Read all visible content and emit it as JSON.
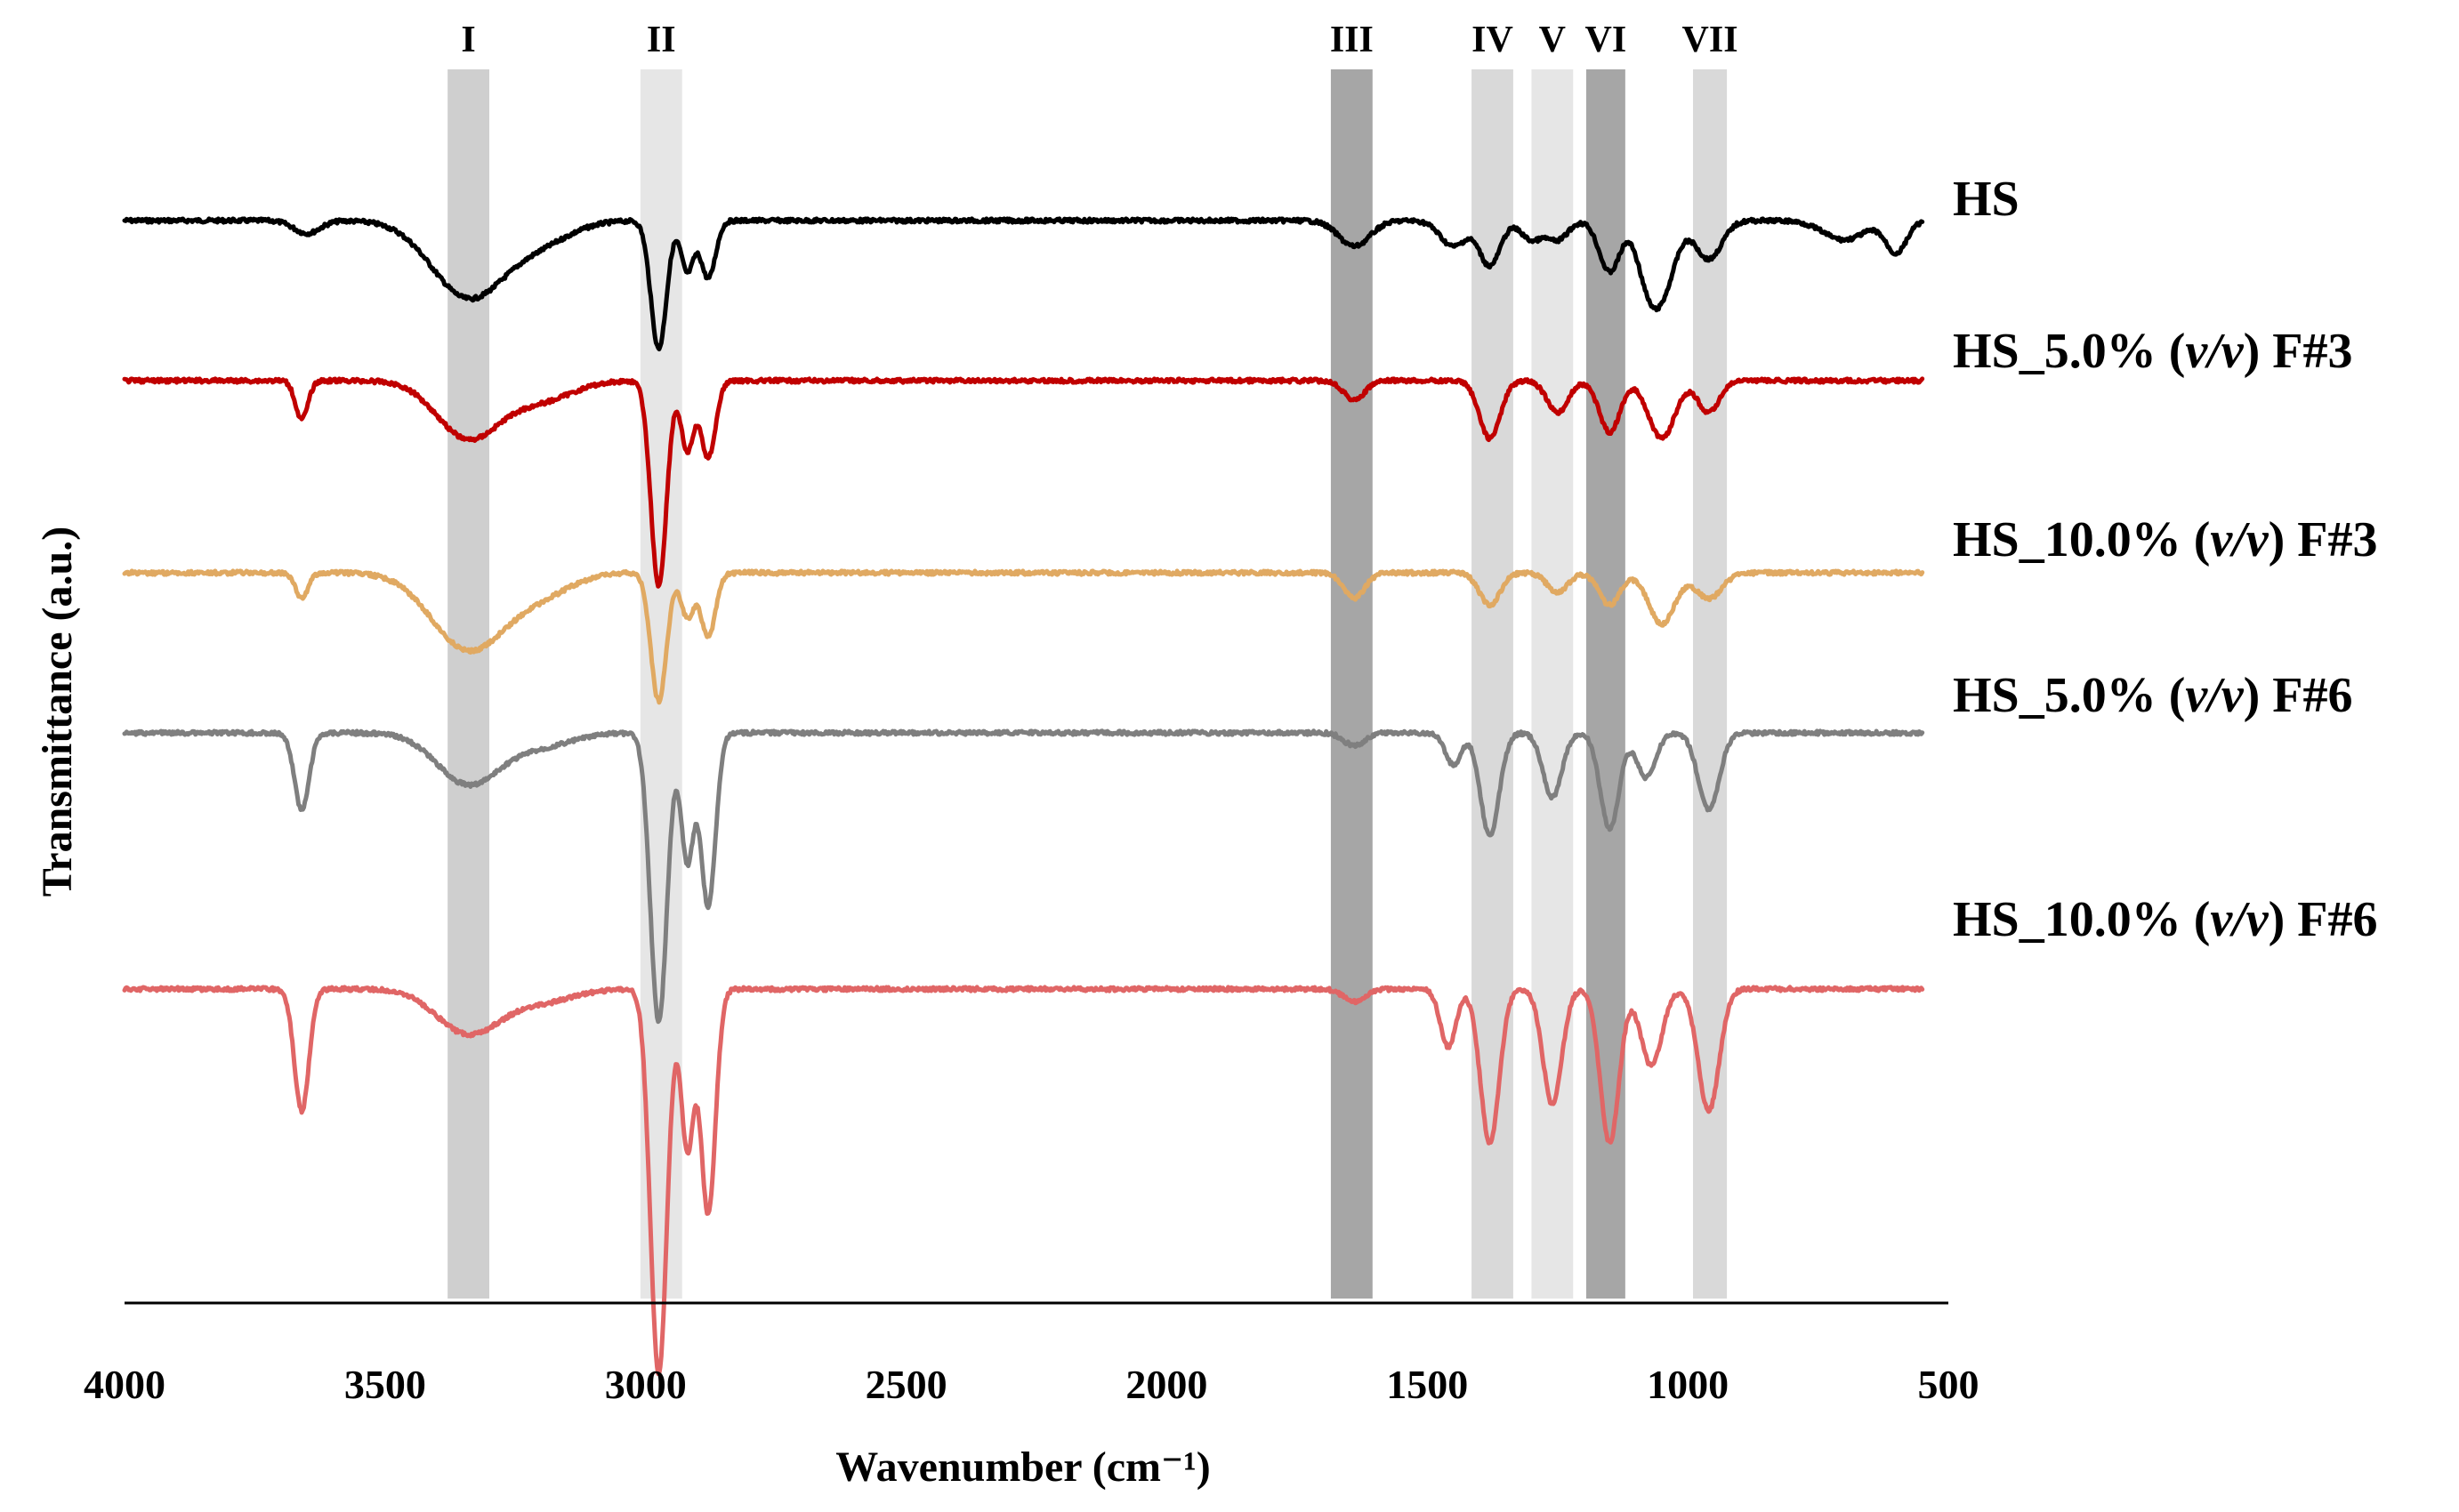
{
  "chart_data": {
    "type": "line",
    "title": "",
    "xlabel": "Wavenumber (cm⁻¹)",
    "ylabel": "Transmittance (a.u.)",
    "xlim": [
      4000,
      500
    ],
    "x_reversed": true,
    "grid": false,
    "x_ticks": [
      "4000",
      "3500",
      "3000",
      "2500",
      "2000",
      "1500",
      "1000",
      "500"
    ],
    "x_tick_values": [
      4000,
      3500,
      3000,
      2500,
      2000,
      1500,
      1000,
      500
    ],
    "x_end": 550,
    "bands": [
      {
        "label": "I",
        "from": 3380,
        "to": 3300,
        "shade": "#cfcfcf"
      },
      {
        "label": "II",
        "from": 3010,
        "to": 2930,
        "shade": "#e6e6e6"
      },
      {
        "label": "III",
        "from": 1685,
        "to": 1605,
        "shade": "#a6a6a6"
      },
      {
        "label": "IV",
        "from": 1415,
        "to": 1335,
        "shade": "#d9d9d9"
      },
      {
        "label": "V",
        "from": 1300,
        "to": 1220,
        "shade": "#e6e6e6"
      },
      {
        "label": "VI",
        "from": 1195,
        "to": 1120,
        "shade": "#a6a6a6"
      },
      {
        "label": "VII",
        "from": 990,
        "to": 925,
        "shade": "#d9d9d9"
      }
    ],
    "series": [
      {
        "name": "HS",
        "legend": {
          "pre": "HS",
          "ital": "",
          "post": ""
        },
        "color": "#000000",
        "baseline": 0,
        "features": [
          [
            3650,
            0.2,
            25
          ],
          [
            3340,
            1.2,
            70
          ],
          [
            3200,
            0.3,
            60
          ],
          [
            2975,
            2.0,
            15
          ],
          [
            2920,
            0.8,
            12
          ],
          [
            2880,
            0.9,
            14
          ],
          [
            1640,
            0.4,
            30
          ],
          [
            1450,
            0.4,
            25
          ],
          [
            1380,
            0.7,
            20
          ],
          [
            1300,
            0.3,
            20
          ],
          [
            1250,
            0.3,
            20
          ],
          [
            1150,
            0.8,
            20
          ],
          [
            1080,
            0.6,
            20
          ],
          [
            1050,
            1.1,
            25
          ],
          [
            960,
            0.6,
            25
          ],
          [
            700,
            0.3,
            40
          ],
          [
            600,
            0.5,
            20
          ]
        ]
      },
      {
        "name": "HS_5.0% (v/v) F#3",
        "legend": {
          "pre": "HS_5.0% (",
          "ital": "v/v",
          "post": ") F#3"
        },
        "color": "#c00000",
        "baseline": 2.5,
        "features": [
          [
            3660,
            0.6,
            12
          ],
          [
            3340,
            0.9,
            60
          ],
          [
            3200,
            0.3,
            60
          ],
          [
            2975,
            3.2,
            15
          ],
          [
            2920,
            1.1,
            12
          ],
          [
            2880,
            1.2,
            14
          ],
          [
            1640,
            0.3,
            20
          ],
          [
            1380,
            0.9,
            20
          ],
          [
            1250,
            0.5,
            20
          ],
          [
            1150,
            0.8,
            20
          ],
          [
            1050,
            0.9,
            25
          ],
          [
            960,
            0.5,
            20
          ]
        ]
      },
      {
        "name": "HS_10.0% (v/v) F#3",
        "legend": {
          "pre": "HS_10.0% (",
          "ital": "v/v",
          "post": ") F#3"
        },
        "color": "#e0a962",
        "baseline": 5.5,
        "features": [
          [
            3660,
            0.4,
            12
          ],
          [
            3340,
            1.2,
            70
          ],
          [
            3200,
            0.3,
            60
          ],
          [
            2975,
            2.0,
            15
          ],
          [
            2920,
            0.7,
            12
          ],
          [
            2880,
            1.0,
            14
          ],
          [
            1640,
            0.4,
            20
          ],
          [
            1380,
            0.5,
            20
          ],
          [
            1250,
            0.3,
            20
          ],
          [
            1150,
            0.5,
            20
          ],
          [
            1050,
            0.8,
            25
          ],
          [
            960,
            0.4,
            25
          ]
        ]
      },
      {
        "name": "HS_5.0% (v/v) F#6",
        "legend": {
          "pre": "HS_5.0% (",
          "ital": "v/v",
          "post": ") F#6"
        },
        "color": "#7f7f7f",
        "baseline": 8.0,
        "features": [
          [
            3660,
            1.2,
            14
          ],
          [
            3340,
            0.8,
            60
          ],
          [
            3200,
            0.2,
            60
          ],
          [
            2975,
            4.5,
            16
          ],
          [
            2920,
            2.0,
            12
          ],
          [
            2880,
            2.7,
            14
          ],
          [
            1640,
            0.2,
            20
          ],
          [
            1450,
            0.5,
            15
          ],
          [
            1380,
            1.6,
            18
          ],
          [
            1260,
            1.0,
            18
          ],
          [
            1150,
            1.5,
            18
          ],
          [
            1080,
            0.7,
            18
          ],
          [
            960,
            1.2,
            20
          ]
        ]
      },
      {
        "name": "HS_10.0% (v/v) F#6",
        "legend": {
          "pre": "HS_10.0% (",
          "ital": "v/v",
          "post": ") F#6"
        },
        "color": "#e06666",
        "baseline": 12.0,
        "features": [
          [
            3660,
            1.9,
            14
          ],
          [
            3340,
            0.7,
            60
          ],
          [
            3200,
            0.2,
            60
          ],
          [
            2975,
            6.0,
            16
          ],
          [
            2920,
            2.5,
            12
          ],
          [
            2880,
            3.5,
            14
          ],
          [
            1640,
            0.2,
            20
          ],
          [
            1460,
            0.9,
            15
          ],
          [
            1380,
            2.4,
            18
          ],
          [
            1260,
            1.8,
            18
          ],
          [
            1150,
            2.4,
            18
          ],
          [
            1070,
            1.2,
            20
          ],
          [
            960,
            1.9,
            20
          ]
        ]
      }
    ]
  }
}
